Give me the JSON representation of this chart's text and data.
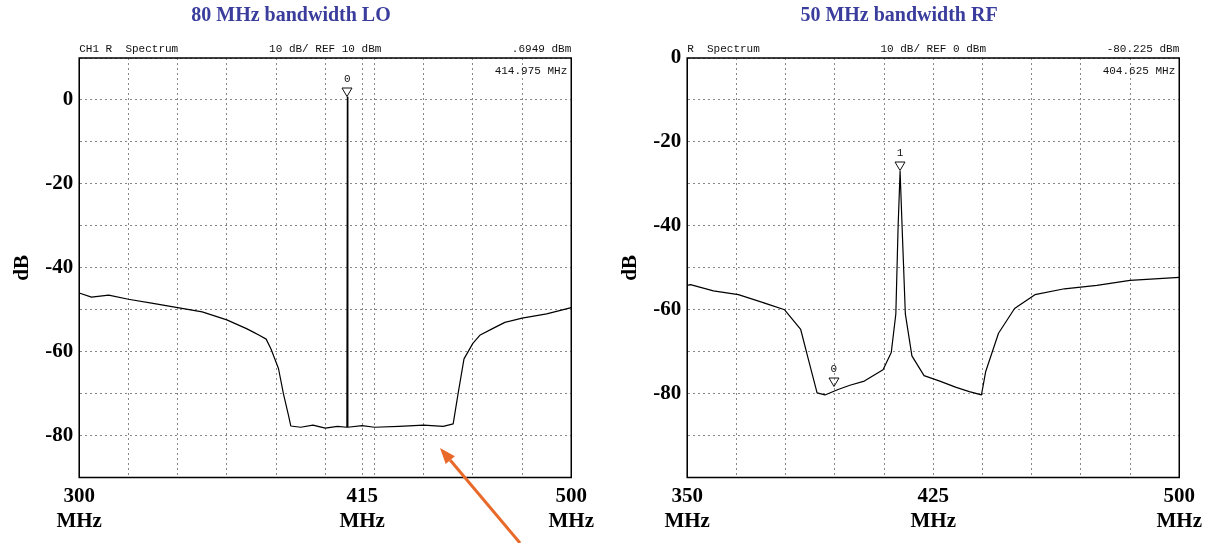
{
  "chart_data": [
    {
      "type": "line",
      "title": "80 MHz bandwidth LO",
      "ylabel": "dB",
      "xlim": [
        300,
        500
      ],
      "ylim": [
        -90,
        10
      ],
      "grid": true,
      "xticks": [
        {
          "value": 300,
          "label": "300\nMHz"
        },
        {
          "value": 320,
          "label": null
        },
        {
          "value": 340,
          "label": null
        },
        {
          "value": 360,
          "label": null
        },
        {
          "value": 380,
          "label": null
        },
        {
          "value": 400,
          "label": null
        },
        {
          "value": 415,
          "label": "415\nMHz"
        },
        {
          "value": 420,
          "label": null
        },
        {
          "value": 440,
          "label": null
        },
        {
          "value": 460,
          "label": null
        },
        {
          "value": 480,
          "label": null
        },
        {
          "value": 500,
          "label": "500\nMHz"
        }
      ],
      "yticks": [
        {
          "value": 10,
          "label": null
        },
        0,
        {
          "value": -10,
          "label": null
        },
        -20,
        {
          "value": -30,
          "label": null
        },
        -40,
        {
          "value": -50,
          "label": null
        },
        -60,
        {
          "value": -70,
          "label": null
        },
        -80,
        {
          "value": -90,
          "label": null
        }
      ],
      "x": [
        300,
        305,
        312,
        320,
        330,
        340,
        350,
        360,
        368,
        373,
        376,
        378,
        381,
        383,
        385,
        386,
        390,
        395,
        400,
        405,
        408.8,
        409,
        409.2,
        415,
        420,
        430,
        440,
        448,
        452,
        454,
        456.4,
        460,
        463,
        468,
        473,
        480,
        490,
        500
      ],
      "values": [
        -46,
        -47,
        -46.5,
        -47.5,
        -48.5,
        -49.5,
        -50.5,
        -52.4,
        -54.5,
        -56,
        -57,
        -59.4,
        -64,
        -70,
        -75,
        -77.7,
        -78,
        -77.5,
        -78.2,
        -77.8,
        -78,
        0.7,
        -78,
        -77.6,
        -78,
        -77.8,
        -77.5,
        -77.8,
        -77.2,
        -70,
        -61.7,
        -58,
        -56,
        -54.5,
        -53,
        -52,
        -51,
        -49.5
      ],
      "color": "#000000",
      "annotations": [
        "CH1 R  Spectrum",
        "10 dB/ REF 10 dBm",
        ".6949 dBm",
        "414.975 MHz",
        {
          "text": "0",
          "x": 409,
          "y": 0.7
        }
      ]
    },
    {
      "type": "line",
      "title": "50 MHz bandwidth RF",
      "ylabel": "dB",
      "xlim": [
        350,
        500
      ],
      "ylim": [
        -100,
        0
      ],
      "grid": true,
      "xticks": [
        {
          "value": 350,
          "label": "350\nMHz"
        },
        {
          "value": 365,
          "label": null
        },
        {
          "value": 380,
          "label": null
        },
        {
          "value": 395,
          "label": null
        },
        {
          "value": 410,
          "label": null
        },
        {
          "value": 425,
          "label": "425\nMHz"
        },
        {
          "value": 440,
          "label": null
        },
        {
          "value": 455,
          "label": null
        },
        {
          "value": 470,
          "label": null
        },
        {
          "value": 485,
          "label": null
        },
        {
          "value": 500,
          "label": "500\nMHz"
        }
      ],
      "yticks": [
        0,
        {
          "value": -10,
          "label": null
        },
        -20,
        {
          "value": -30,
          "label": null
        },
        -40,
        {
          "value": -50,
          "label": null
        },
        -60,
        {
          "value": -70,
          "label": null
        },
        -80,
        {
          "value": -90,
          "label": null
        },
        {
          "value": -100,
          "label": null
        }
      ],
      "x": [
        350,
        351,
        358,
        365.6,
        372,
        379.7,
        384.6,
        387,
        389.6,
        392,
        396,
        399.6,
        404,
        409.7,
        412.2,
        413.6,
        414.3,
        414.9,
        415.5,
        416.5,
        418.5,
        422.2,
        427,
        432,
        436,
        439.7,
        441,
        444.9,
        449.8,
        456,
        465,
        474.9,
        485,
        500
      ],
      "values": [
        -54.2,
        -54,
        -55.5,
        -56.4,
        -58,
        -60,
        -64.7,
        -72,
        -79.8,
        -80.3,
        -79,
        -78,
        -77,
        -74.3,
        -70.2,
        -61,
        -40,
        -27,
        -40,
        -61,
        -71,
        -75.7,
        -77,
        -78.5,
        -79.5,
        -80.3,
        -74.7,
        -65.6,
        -59.7,
        -56.4,
        -55,
        -54.2,
        -53,
        -52.3
      ],
      "color": "#000000",
      "annotations": [
        "R  Spectrum",
        "10 dB/ REF 0 dBm",
        "-80.225 dBm",
        "404.625 MHz",
        {
          "text": "1",
          "x": 414.9,
          "y": -27
        },
        {
          "text": "0",
          "x": 394.7,
          "y": -78.5
        }
      ]
    }
  ]
}
